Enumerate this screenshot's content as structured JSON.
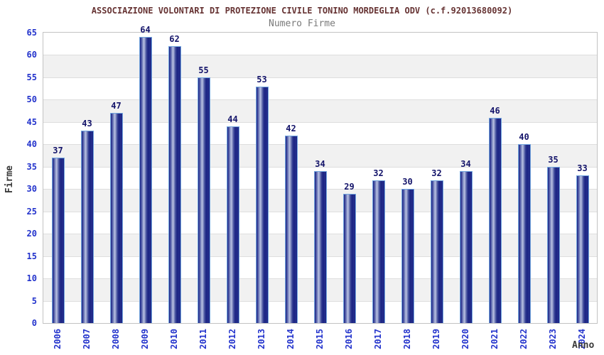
{
  "header": {
    "title": "ASSOCIAZIONE VOLONTARI DI PROTEZIONE CIVILE TONINO MORDEGLIA ODV (c.f.92013680092)",
    "subtitle": "Numero Firme"
  },
  "axes": {
    "y_label": "Firme",
    "x_label": "Anno"
  },
  "colors": {
    "title": "#663333",
    "subtitle": "#7a7a7a",
    "tick_label": "#2333cc",
    "value_label": "#14146a",
    "bar_outline": "#72a5de",
    "bar_dark": "#1b2383",
    "bar_highlight": "#bcc3e4",
    "band_gray": "#f1f1f1",
    "gridline": "#dedede",
    "axis_border": "#c3c3c3"
  },
  "chart_data": {
    "type": "bar",
    "title": "ASSOCIAZIONE VOLONTARI DI PROTEZIONE CIVILE TONINO MORDEGLIA ODV (c.f.92013680092)",
    "subtitle": "Numero Firme",
    "xlabel": "Anno",
    "ylabel": "Firme",
    "ylim": [
      0,
      65
    ],
    "ytick_step": 5,
    "grid": true,
    "legend": false,
    "band_fill": "alternating horizontal bands every 5 units, white and light gray",
    "categories": [
      "2006",
      "2007",
      "2008",
      "2009",
      "2010",
      "2011",
      "2012",
      "2013",
      "2014",
      "2015",
      "2016",
      "2017",
      "2018",
      "2019",
      "2020",
      "2021",
      "2022",
      "2023",
      "2024"
    ],
    "values": [
      37,
      43,
      47,
      64,
      62,
      55,
      44,
      53,
      42,
      34,
      29,
      32,
      30,
      32,
      34,
      46,
      40,
      35,
      33
    ]
  }
}
